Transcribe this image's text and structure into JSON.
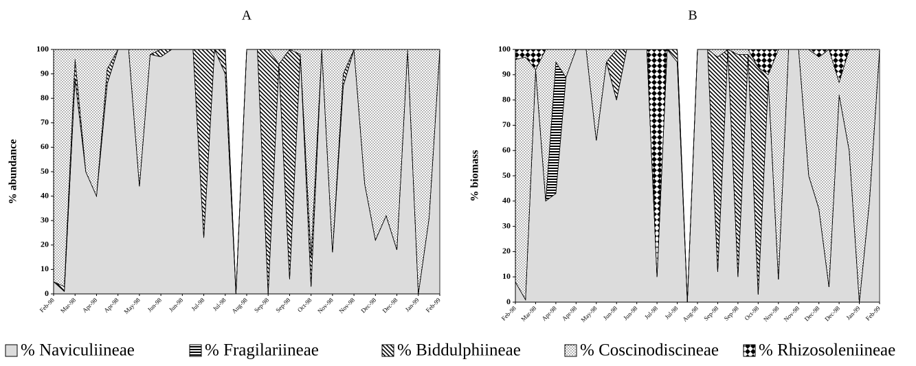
{
  "legend_patterns": [
    "solid",
    "hlines",
    "diag",
    "dots",
    "checker"
  ],
  "chart_data": [
    {
      "type": "area",
      "title": "A",
      "ylabel": "% abundance",
      "categories": [
        "Feb-98",
        null,
        "Mar-98",
        null,
        "Apr-98",
        null,
        "Apr-98",
        null,
        "May-98",
        null,
        "Jun-98",
        null,
        "Jun-98",
        null,
        "Jul-98",
        null,
        "Jul-98",
        null,
        "Aug-98",
        null,
        "Sep-98",
        null,
        "Sep-98",
        null,
        "Oct-98",
        null,
        "Nov-98",
        null,
        "Nov-98",
        null,
        "Dec-98",
        null,
        "Dec-98",
        null,
        "Jan-99",
        null,
        "Feb-99"
      ],
      "ylim": [
        0,
        100
      ],
      "yticks": [
        0,
        10,
        20,
        30,
        40,
        50,
        60,
        70,
        80,
        90,
        100
      ],
      "series": [
        {
          "name": "% Naviculiineae",
          "color": "#dcdcdc",
          "values": [
            5,
            1,
            88,
            50,
            40,
            86,
            100,
            100,
            44,
            98,
            97,
            100,
            100,
            100,
            23,
            100,
            90,
            0,
            100,
            100,
            0,
            94,
            6,
            98,
            3,
            100,
            17,
            85,
            100,
            45,
            22,
            32,
            18,
            100,
            0,
            31,
            100
          ]
        },
        {
          "name": "% Fragilariineae",
          "color": "#ffffff",
          "values": [
            0,
            0,
            0,
            0,
            0,
            0,
            0,
            0,
            0,
            0,
            0,
            0,
            0,
            0,
            0,
            0,
            0,
            0,
            0,
            0,
            0,
            0,
            0,
            0,
            0,
            0,
            0,
            0,
            0,
            0,
            0,
            0,
            0,
            0,
            0,
            0,
            0
          ]
        },
        {
          "name": "% Biddulphiineae",
          "color": "#ffffff",
          "values": [
            0,
            2,
            8,
            0,
            0,
            6,
            0,
            0,
            0,
            0,
            3,
            0,
            0,
            0,
            77,
            0,
            10,
            0,
            0,
            0,
            100,
            0,
            94,
            0,
            12,
            0,
            0,
            5,
            0,
            0,
            0,
            0,
            0,
            0,
            0,
            0,
            0
          ]
        },
        {
          "name": "% Coscinodiscineae",
          "color": "#ffffff",
          "values": [
            95,
            97,
            4,
            50,
            60,
            8,
            0,
            0,
            56,
            2,
            0,
            0,
            0,
            0,
            0,
            0,
            0,
            0,
            0,
            0,
            0,
            6,
            0,
            2,
            85,
            0,
            83,
            10,
            0,
            55,
            78,
            68,
            82,
            0,
            100,
            69,
            0
          ]
        },
        {
          "name": "% Rhizosoleniineae",
          "color": "#ffffff",
          "values": [
            0,
            0,
            0,
            0,
            0,
            0,
            0,
            0,
            0,
            0,
            0,
            0,
            0,
            0,
            0,
            0,
            0,
            0,
            0,
            0,
            0,
            0,
            0,
            0,
            0,
            0,
            0,
            0,
            0,
            0,
            0,
            0,
            0,
            0,
            0,
            0,
            0
          ]
        }
      ]
    },
    {
      "type": "area",
      "title": "B",
      "ylabel": "% biomass",
      "categories": [
        "Feb-98",
        null,
        "Mar-98",
        null,
        "Apr-98",
        null,
        "Apr-98",
        null,
        "May-98",
        null,
        "Jun-98",
        null,
        "Jun-98",
        null,
        "Jul-98",
        null,
        "Jul-98",
        null,
        "Aug-98",
        null,
        "Sep-98",
        null,
        "Sep-98",
        null,
        "Oct-98",
        null,
        "Nov-98",
        null,
        "Nov-98",
        null,
        "Dec-98",
        null,
        "Dec-98",
        null,
        "Jan-99",
        null,
        "Feb-99"
      ],
      "ylim": [
        0,
        100
      ],
      "yticks": [
        0,
        10,
        20,
        30,
        40,
        50,
        60,
        70,
        80,
        90,
        100
      ],
      "series": [
        {
          "color": "#dcdcdc",
          "values": [
            8,
            1,
            92,
            40,
            43,
            89,
            100,
            100,
            64,
            95,
            80,
            100,
            100,
            100,
            10,
            100,
            95,
            0,
            100,
            100,
            12,
            100,
            10,
            98,
            3,
            88,
            9,
            100,
            100,
            50,
            37,
            6,
            82,
            60,
            0,
            40,
            100
          ]
        },
        {
          "color": "#ffffff",
          "values": [
            0,
            0,
            0,
            0,
            52,
            0,
            0,
            0,
            0,
            0,
            0,
            0,
            0,
            0,
            0,
            0,
            0,
            0,
            0,
            0,
            0,
            0,
            0,
            0,
            0,
            0,
            0,
            0,
            0,
            0,
            0,
            0,
            0,
            0,
            0,
            0,
            0
          ]
        },
        {
          "color": "#ffffff",
          "values": [
            0,
            0,
            0,
            0,
            0,
            0,
            0,
            0,
            0,
            0,
            20,
            0,
            0,
            0,
            0,
            0,
            5,
            0,
            0,
            0,
            85,
            0,
            88,
            0,
            90,
            0,
            0,
            0,
            0,
            0,
            0,
            0,
            0,
            0,
            0,
            0,
            0
          ]
        },
        {
          "color": "#ffffff",
          "values": [
            88,
            96,
            0,
            60,
            5,
            11,
            0,
            0,
            36,
            5,
            0,
            0,
            0,
            0,
            0,
            0,
            0,
            0,
            0,
            0,
            3,
            0,
            2,
            2,
            0,
            2,
            91,
            0,
            0,
            50,
            60,
            94,
            5,
            40,
            100,
            60,
            0
          ]
        },
        {
          "color": "#ffffff",
          "values": [
            4,
            3,
            8,
            0,
            0,
            0,
            0,
            0,
            0,
            0,
            0,
            0,
            0,
            0,
            90,
            0,
            0,
            0,
            0,
            0,
            0,
            0,
            0,
            0,
            7,
            10,
            0,
            0,
            0,
            0,
            3,
            0,
            13,
            0,
            0,
            0,
            0
          ]
        }
      ]
    }
  ]
}
